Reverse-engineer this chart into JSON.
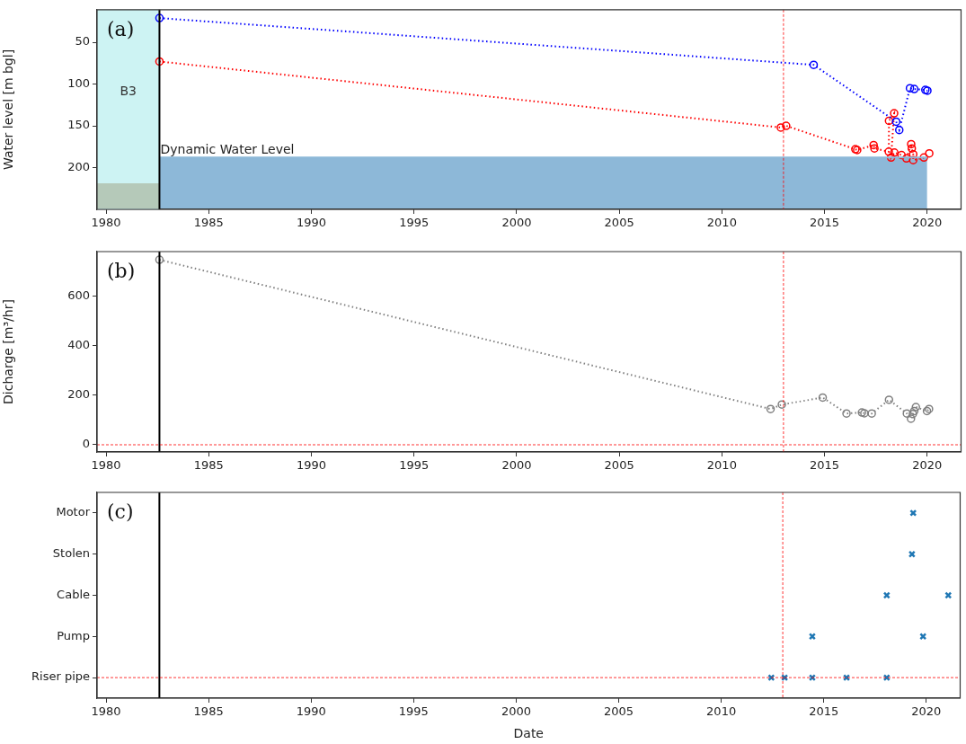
{
  "chart_data": [
    {
      "type": "line",
      "ylabel": "Water level [m bgl]",
      "annotations": [
        "(a)"
      ],
      "marker": "circle",
      "line_style": "dotted",
      "grid": false,
      "xlim": [
        1979.56,
        2021.65
      ],
      "xticks": [
        1980,
        1985,
        1990,
        1995,
        2000,
        2005,
        2010,
        2015,
        2020
      ],
      "ylim": [
        250,
        11
      ],
      "yticks": [
        50,
        100,
        150,
        200
      ],
      "bands": [
        {
          "axis": "x",
          "from": 1979.56,
          "to": 1982.6,
          "label": "B3",
          "color": "#cdf3f3"
        }
      ],
      "ref_lines": [
        {
          "axis": "x",
          "value": 1982.6,
          "color": "#000000",
          "line_style": "solid"
        },
        {
          "axis": "x",
          "value": 2013,
          "color": "#ff0000",
          "line_style": "dashed"
        }
      ],
      "series": [
        {
          "marker": "none",
          "line_style": "solid",
          "color": "#b5c9b9",
          "x": [
            1979.56,
            1982.6
          ],
          "values": [
            220,
            220
          ],
          "lower": [
            220,
            220
          ],
          "upper": [
            249,
            249
          ]
        },
        {
          "marker": "none",
          "line_style": "solid",
          "name": "Dynamic Water Level",
          "color": "#8db8d8",
          "x": [
            1982.6,
            2020.0
          ],
          "values": [
            188,
            188
          ],
          "lower": [
            188,
            188
          ],
          "upper": [
            249,
            249
          ]
        },
        {
          "color": "#0000ff",
          "x": [
            1982.6,
            2014.47,
            2018.49,
            2018.64,
            2019.16,
            2019.37,
            2019.91,
            2020.01
          ],
          "values": [
            21,
            77,
            145,
            155,
            105,
            106,
            107,
            108
          ]
        },
        {
          "color": "#ff0000",
          "x": [
            1982.6,
            2012.87,
            2013.13,
            2016.5,
            2016.59,
            2017.39,
            2017.43,
            2018.13,
            2018.14,
            2018.39,
            2018.24,
            2018.4,
            2018.75,
            2018.99,
            2019.22,
            2019.25,
            2019.32,
            2019.32,
            2019.84,
            2020.1
          ],
          "values": [
            73,
            152,
            150,
            178,
            179,
            173,
            177,
            181,
            144,
            135,
            188,
            182,
            185,
            189,
            172,
            177,
            184,
            191,
            188,
            183
          ]
        }
      ]
    },
    {
      "type": "line",
      "ylabel": "Dicharge [m³/hr]",
      "annotations": [
        "(b)"
      ],
      "marker": "circle",
      "line_style": "dotted",
      "grid": false,
      "xlim": [
        1979.56,
        2021.65
      ],
      "xticks": [
        1980,
        1985,
        1990,
        1995,
        2000,
        2005,
        2010,
        2015,
        2020
      ],
      "ylim": [
        -29,
        778
      ],
      "yticks": [
        0,
        200,
        400,
        600
      ],
      "ref_lines": [
        {
          "axis": "x",
          "value": 1982.6,
          "color": "#000000",
          "line_style": "solid"
        },
        {
          "axis": "x",
          "value": 2013,
          "color": "#ff0000",
          "line_style": "dashed"
        },
        {
          "axis": "y",
          "value": 0,
          "color": "#ff0000",
          "line_style": "dashed"
        }
      ],
      "series": [
        {
          "color": "#808080",
          "x": [
            1982.6,
            2012.37,
            2012.92,
            2014.91,
            2016.07,
            2016.82,
            2016.94,
            2017.3,
            2018.14,
            2019.01,
            2019.21,
            2019.3,
            2019.37,
            2019.45,
            2019.99,
            2020.09
          ],
          "values": [
            745,
            144,
            162,
            190,
            126,
            130,
            127,
            126,
            181,
            126,
            105,
            124,
            136,
            152,
            136,
            144
          ]
        }
      ]
    },
    {
      "type": "scatter",
      "orientation": "horizontal",
      "xlabel": "Date",
      "annotations": [
        "(c)"
      ],
      "marker": "cross",
      "grid": false,
      "xlim": [
        1979.56,
        2021.65
      ],
      "xticks": [
        1980,
        1985,
        1990,
        1995,
        2000,
        2005,
        2010,
        2015,
        2020
      ],
      "categories": [
        "Motor",
        "Stolen",
        "Cable",
        "Pump",
        "Riser pipe"
      ],
      "ref_lines": [
        {
          "axis": "x",
          "value": 1982.6,
          "color": "#000000",
          "line_style": "solid"
        },
        {
          "axis": "x",
          "value": 2013,
          "color": "#ff0000",
          "line_style": "dashed"
        },
        {
          "axis": "y",
          "value": "Riser pipe",
          "color": "#ff0000",
          "line_style": "dashed"
        }
      ],
      "series": [
        {
          "color": "#1f77b4",
          "values": [
            2019.36,
            2019.3,
            2018.07,
            2014.44,
            2012.44
          ]
        },
        {
          "color": "#1f77b4",
          "values": [
            null,
            null,
            2021.07,
            2019.84,
            2013.09
          ]
        },
        {
          "color": "#1f77b4",
          "values": [
            null,
            null,
            null,
            null,
            2014.44
          ]
        },
        {
          "color": "#1f77b4",
          "values": [
            null,
            null,
            null,
            null,
            2016.11
          ]
        },
        {
          "color": "#1f77b4",
          "values": [
            null,
            null,
            null,
            null,
            2018.07
          ]
        }
      ]
    }
  ]
}
